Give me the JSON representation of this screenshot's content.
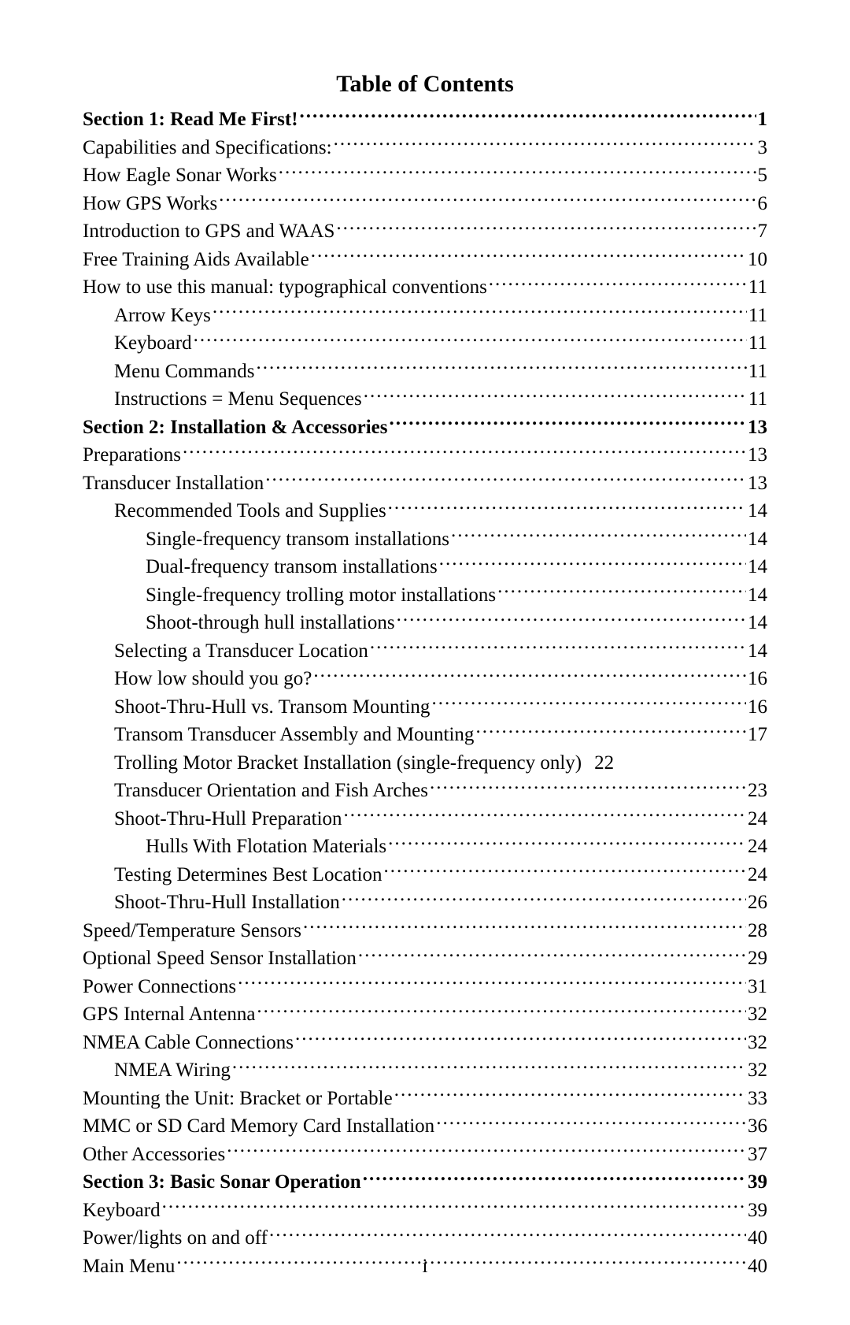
{
  "title": "Table of Contents",
  "page_roman": "i",
  "entries": [
    {
      "label": "Section 1: Read Me First!",
      "page": "1",
      "indent": 0,
      "bold": true,
      "dots": true
    },
    {
      "label": "Capabilities and Specifications:",
      "page": "3",
      "indent": 0,
      "bold": false,
      "dots": true
    },
    {
      "label": "How Eagle Sonar Works",
      "page": "5",
      "indent": 0,
      "bold": false,
      "dots": true
    },
    {
      "label": "How GPS Works",
      "page": "6",
      "indent": 0,
      "bold": false,
      "dots": true
    },
    {
      "label": "Introduction to GPS and WAAS",
      "page": "7",
      "indent": 0,
      "bold": false,
      "dots": true
    },
    {
      "label": "Free Training Aids Available",
      "page": "10",
      "indent": 0,
      "bold": false,
      "dots": true
    },
    {
      "label": "How to use this manual: typographical conventions",
      "page": "11",
      "indent": 0,
      "bold": false,
      "dots": true
    },
    {
      "label": "Arrow Keys",
      "page": "11",
      "indent": 1,
      "bold": false,
      "dots": true
    },
    {
      "label": "Keyboard",
      "page": "11",
      "indent": 1,
      "bold": false,
      "dots": true
    },
    {
      "label": "Menu Commands",
      "page": "11",
      "indent": 1,
      "bold": false,
      "dots": true
    },
    {
      "label": "Instructions = Menu Sequences",
      "page": "11",
      "indent": 1,
      "bold": false,
      "dots": true
    },
    {
      "label": "Section 2: Installation & Accessories",
      "page": "13",
      "indent": 0,
      "bold": true,
      "dots": true
    },
    {
      "label": "Preparations",
      "page": "13",
      "indent": 0,
      "bold": false,
      "dots": true
    },
    {
      "label": "Transducer Installation",
      "page": "13",
      "indent": 0,
      "bold": false,
      "dots": true
    },
    {
      "label": "Recommended Tools and Supplies",
      "page": "14",
      "indent": 1,
      "bold": false,
      "dots": true
    },
    {
      "label": "Single-frequency transom installations",
      "page": "14",
      "indent": 2,
      "bold": false,
      "dots": true
    },
    {
      "label": "Dual-frequency transom installations",
      "page": "14",
      "indent": 2,
      "bold": false,
      "dots": true
    },
    {
      "label": "Single-frequency trolling motor installations",
      "page": "14",
      "indent": 2,
      "bold": false,
      "dots": true
    },
    {
      "label": "Shoot-through hull installations",
      "page": "14",
      "indent": 2,
      "bold": false,
      "dots": true
    },
    {
      "label": "Selecting a Transducer Location",
      "page": "14",
      "indent": 1,
      "bold": false,
      "dots": true
    },
    {
      "label": "How low should you go?",
      "page": "16",
      "indent": 1,
      "bold": false,
      "dots": true
    },
    {
      "label": "Shoot-Thru-Hull vs. Transom Mounting",
      "page": "16",
      "indent": 1,
      "bold": false,
      "dots": true
    },
    {
      "label": "Transom Transducer Assembly and Mounting",
      "page": "17",
      "indent": 1,
      "bold": false,
      "dots": true
    },
    {
      "label": "Trolling Motor Bracket Installation (single-frequency only)",
      "page": "22",
      "indent": 1,
      "bold": false,
      "dots": false
    },
    {
      "label": "Transducer Orientation and Fish Arches",
      "page": "23",
      "indent": 1,
      "bold": false,
      "dots": true
    },
    {
      "label": "Shoot-Thru-Hull Preparation",
      "page": "24",
      "indent": 1,
      "bold": false,
      "dots": true
    },
    {
      "label": "Hulls With Flotation Materials",
      "page": "24",
      "indent": 2,
      "bold": false,
      "dots": true
    },
    {
      "label": "Testing Determines Best Location",
      "page": "24",
      "indent": 1,
      "bold": false,
      "dots": true
    },
    {
      "label": "Shoot-Thru-Hull Installation",
      "page": "26",
      "indent": 1,
      "bold": false,
      "dots": true
    },
    {
      "label": "Speed/Temperature Sensors",
      "page": "28",
      "indent": 0,
      "bold": false,
      "dots": true
    },
    {
      "label": "Optional Speed Sensor Installation",
      "page": "29",
      "indent": 0,
      "bold": false,
      "dots": true
    },
    {
      "label": "Power Connections",
      "page": "31",
      "indent": 0,
      "bold": false,
      "dots": true
    },
    {
      "label": "GPS Internal Antenna",
      "page": "32",
      "indent": 0,
      "bold": false,
      "dots": true
    },
    {
      "label": "NMEA Cable Connections",
      "page": "32",
      "indent": 0,
      "bold": false,
      "dots": true
    },
    {
      "label": "NMEA Wiring",
      "page": "32",
      "indent": 1,
      "bold": false,
      "dots": true
    },
    {
      "label": "Mounting the Unit: Bracket or Portable",
      "page": "33",
      "indent": 0,
      "bold": false,
      "dots": true
    },
    {
      "label": "MMC or SD Card Memory Card Installation",
      "page": "36",
      "indent": 0,
      "bold": false,
      "dots": true
    },
    {
      "label": "Other Accessories",
      "page": "37",
      "indent": 0,
      "bold": false,
      "dots": true
    },
    {
      "label": "Section 3: Basic Sonar Operation",
      "page": "39",
      "indent": 0,
      "bold": true,
      "dots": true
    },
    {
      "label": "Keyboard",
      "page": "39",
      "indent": 0,
      "bold": false,
      "dots": true
    },
    {
      "label": "Power/lights on and off",
      "page": "40",
      "indent": 0,
      "bold": false,
      "dots": true
    },
    {
      "label": "Main Menu",
      "page": "40",
      "indent": 0,
      "bold": false,
      "dots": true
    }
  ]
}
